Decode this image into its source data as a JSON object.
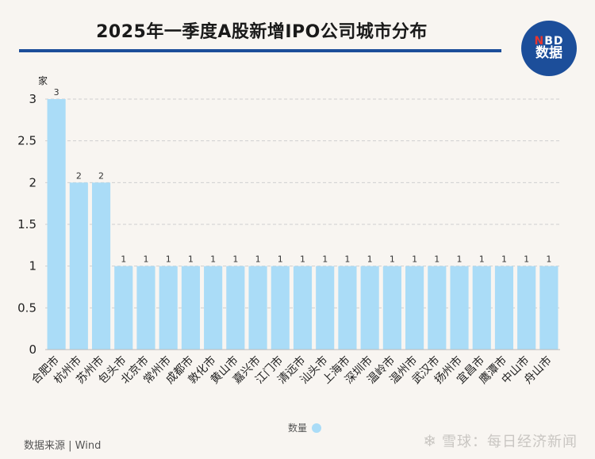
{
  "header": {
    "title": "2025年一季度A股新增IPO公司城市分布",
    "logo_top": "NBD",
    "logo_bottom": "数据"
  },
  "unit_label": "家",
  "legend_label": "数量",
  "source_text": "数据来源 | Wind",
  "footer": {
    "brand": "雪球：每日经济新闻"
  },
  "colors": {
    "bar": "#aadcf7",
    "accent": "#1c4e9a"
  },
  "chart_data": {
    "type": "bar",
    "title": "2025年一季度A股新增IPO公司城市分布",
    "xlabel": "",
    "ylabel": "家",
    "ylim": [
      0,
      3
    ],
    "yticks": [
      "0",
      "0.5",
      "1",
      "1.5",
      "2",
      "2.5",
      "3"
    ],
    "grid": true,
    "legend_position": "bottom",
    "categories": [
      "合肥市",
      "杭州市",
      "苏州市",
      "包头市",
      "北京市",
      "常州市",
      "成都市",
      "敦化市",
      "黄山市",
      "嘉兴市",
      "江门市",
      "清远市",
      "汕头市",
      "上海市",
      "深圳市",
      "温岭市",
      "温州市",
      "武汉市",
      "扬州市",
      "宜昌市",
      "鹰潭市",
      "中山市",
      "舟山市"
    ],
    "series": [
      {
        "name": "数量",
        "values": [
          3,
          2,
          2,
          1,
          1,
          1,
          1,
          1,
          1,
          1,
          1,
          1,
          1,
          1,
          1,
          1,
          1,
          1,
          1,
          1,
          1,
          1,
          1
        ]
      }
    ]
  }
}
